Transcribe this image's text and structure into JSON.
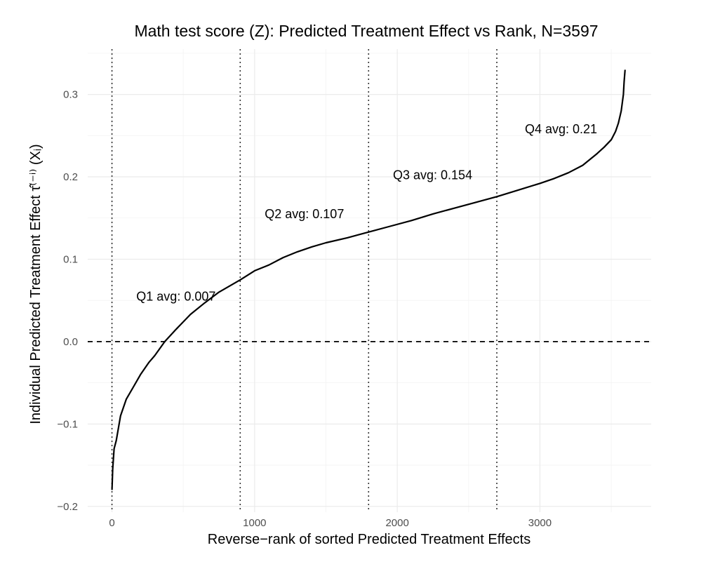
{
  "chart_data": {
    "type": "line",
    "title": "Math test score (Z): Predicted Treatment Effect vs Rank, N=3597",
    "xlabel": "Reverse−rank of sorted Predicted Treatment Effects",
    "ylabel": "Individual Predicted Treatment Effect τ̂⁽⁻ⁱ⁾ (Xᵢ)",
    "xlim": [
      -170,
      3780
    ],
    "ylim": [
      -0.207,
      0.355
    ],
    "x_ticks": [
      0,
      1000,
      2000,
      3000
    ],
    "x_tick_labels": [
      "0",
      "1000",
      "2000",
      "3000"
    ],
    "y_ticks": [
      -0.2,
      -0.1,
      0.0,
      0.1,
      0.2,
      0.3
    ],
    "y_tick_labels": [
      "−0.2",
      "−0.1",
      "0.0",
      "0.1",
      "0.2",
      "0.3"
    ],
    "grid": true,
    "series": [
      {
        "x": [
          0,
          5,
          15,
          30,
          60,
          100,
          150,
          200,
          260,
          300,
          370,
          450,
          550,
          650,
          750,
          900,
          1000,
          1100,
          1200,
          1300,
          1400,
          1500,
          1650,
          1800,
          1950,
          2100,
          2250,
          2400,
          2550,
          2700,
          2850,
          3000,
          3100,
          3200,
          3300,
          3400,
          3450,
          3500,
          3530,
          3550,
          3570,
          3585,
          3590,
          3597
        ],
        "y": [
          -0.18,
          -0.155,
          -0.13,
          -0.12,
          -0.09,
          -0.07,
          -0.055,
          -0.04,
          -0.025,
          -0.017,
          0.0,
          0.015,
          0.033,
          0.047,
          0.06,
          0.075,
          0.086,
          0.093,
          0.102,
          0.109,
          0.115,
          0.12,
          0.126,
          0.133,
          0.14,
          0.147,
          0.155,
          0.162,
          0.169,
          0.176,
          0.184,
          0.192,
          0.198,
          0.205,
          0.214,
          0.228,
          0.236,
          0.245,
          0.255,
          0.265,
          0.28,
          0.3,
          0.315,
          0.33
        ]
      }
    ],
    "vlines": [
      0,
      899,
      1799,
      2698
    ],
    "hline": 0.0,
    "annotations": [
      {
        "text": "Q1 avg: 0.007",
        "x": 449,
        "y": 0.055
      },
      {
        "text": "Q2 avg: 0.107",
        "x": 1349,
        "y": 0.155
      },
      {
        "text": "Q3 avg: 0.154",
        "x": 2248,
        "y": 0.202
      },
      {
        "text": "Q4 avg: 0.21",
        "x": 3148,
        "y": 0.258
      }
    ]
  }
}
